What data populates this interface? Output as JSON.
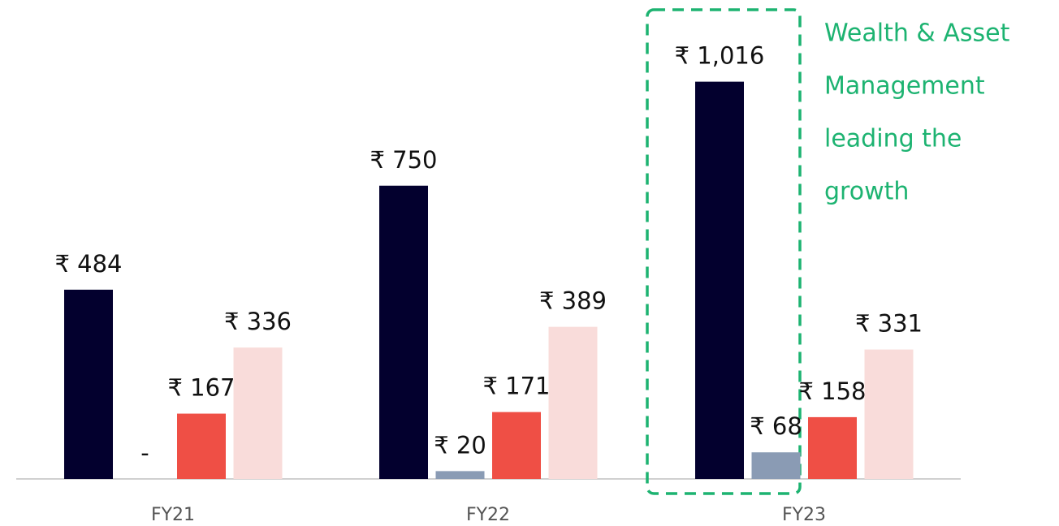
{
  "chart_data": {
    "type": "bar",
    "categories": [
      "FY21",
      "FY22",
      "FY23"
    ],
    "series": [
      {
        "color": "#03002e",
        "values": [
          484,
          750,
          1016
        ],
        "value_labels": [
          "₹ 484",
          "₹ 750",
          "₹ 1,016"
        ]
      },
      {
        "color": "#8a9bb4",
        "values": [
          0,
          20,
          68
        ],
        "value_labels": [
          "-",
          "₹ 20",
          "₹ 68"
        ]
      },
      {
        "color": "#ef4f45",
        "values": [
          167,
          171,
          158
        ],
        "value_labels": [
          "₹ 167",
          "₹ 171",
          "₹ 158"
        ]
      },
      {
        "color": "#f9dcda",
        "values": [
          336,
          389,
          331
        ],
        "value_labels": [
          "₹ 336",
          "₹ 389",
          "₹ 331"
        ]
      }
    ],
    "ylim": [
      0,
      1200
    ],
    "annotation": [
      "Wealth & Asset",
      "Management",
      "leading the",
      "growth"
    ],
    "annotation_color": "#1db371"
  }
}
